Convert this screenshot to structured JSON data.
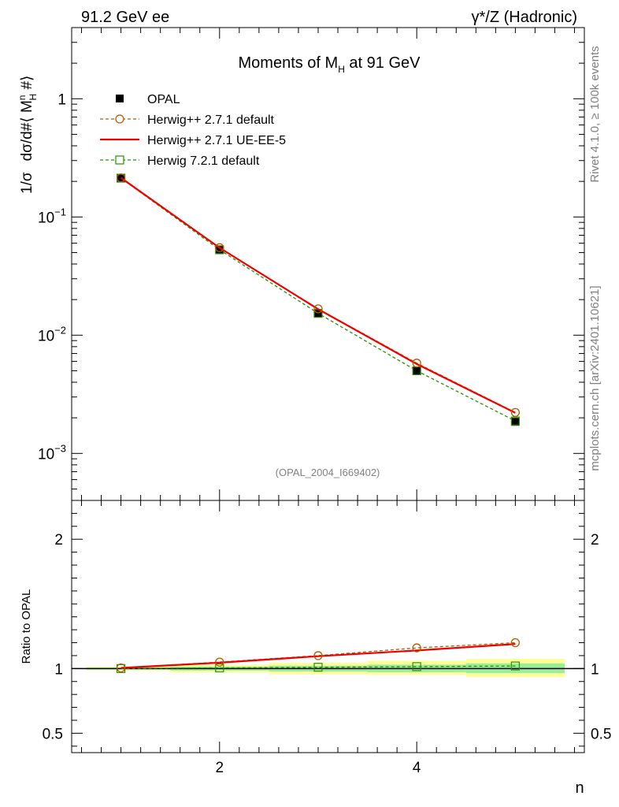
{
  "header": {
    "left": "91.2 GeV ee",
    "right": "γ*/Z (Hadronic)"
  },
  "side_labels": {
    "upper": "Rivet 4.1.0, ≥ 100k events",
    "lower": "mcplots.cern.ch [arXiv:2401.10621]"
  },
  "chart_data": [
    {
      "type": "line",
      "panel": "main",
      "title": "Moments of M_H at 91 GeV",
      "title_main": "Moments of M",
      "title_sub": "H",
      "title_tail": " at 91 GeV",
      "ylabel_a": "1/σ",
      "ylabel_b": "dσ/d#⟨ M",
      "ylabel_sup": "n",
      "ylabel_sub": "H",
      "ylabel_tail": " #⟩",
      "yscale": "log",
      "ylim": [
        0.0004,
        4
      ],
      "yticklabels": [
        {
          "value": 1,
          "base": "1",
          "exp": ""
        },
        {
          "value": 0.1,
          "base": "10",
          "exp": "−1"
        },
        {
          "value": 0.01,
          "base": "10",
          "exp": "−2"
        },
        {
          "value": 0.001,
          "base": "10",
          "exp": "−3"
        }
      ],
      "watermark": "(OPAL_2004_I669402)",
      "x": [
        1,
        2,
        3,
        4,
        5
      ],
      "series": [
        {
          "name": "OPAL",
          "style": "data",
          "color": "#000000",
          "values": [
            0.213,
            0.0525,
            0.0152,
            0.005,
            0.00185
          ]
        },
        {
          "name": "Herwig++ 2.7.1 default",
          "style": "dashed-circle",
          "color": "#b05a00",
          "values": [
            0.214,
            0.055,
            0.0167,
            0.0058,
            0.00222
          ]
        },
        {
          "name": "Herwig++ 2.7.1 UE-EE-5",
          "style": "solid",
          "color": "#ee0000",
          "values": [
            0.214,
            0.0549,
            0.0166,
            0.0057,
            0.0022
          ]
        },
        {
          "name": "Herwig 7.2.1 default",
          "style": "dashed-square",
          "color": "#279000",
          "values": [
            0.213,
            0.0528,
            0.0153,
            0.005,
            0.00188
          ]
        }
      ]
    },
    {
      "type": "line",
      "panel": "ratio",
      "ylabel": "Ratio to OPAL",
      "xlabel": "n",
      "xlim": [
        0.5,
        5.7
      ],
      "xticks": [
        2,
        4
      ],
      "ylim": [
        0.35,
        2.3
      ],
      "yticks": [
        0.5,
        1,
        2
      ],
      "yticklabels": [
        "0.5",
        "1",
        "2"
      ],
      "x": [
        1,
        2,
        3,
        4,
        5
      ],
      "bands": {
        "yellow": [
          [
            0.985,
            1.015
          ],
          [
            0.97,
            1.03
          ],
          [
            0.955,
            1.045
          ],
          [
            0.95,
            1.06
          ],
          [
            0.935,
            1.075
          ]
        ],
        "green": [
          [
            0.992,
            1.008
          ],
          [
            0.985,
            1.015
          ],
          [
            0.978,
            1.022
          ],
          [
            0.972,
            1.03
          ],
          [
            0.965,
            1.04
          ]
        ]
      },
      "series": [
        {
          "name": "Herwig++ 2.7.1 default",
          "values": [
            1.005,
            1.05,
            1.1,
            1.16,
            1.2
          ]
        },
        {
          "name": "Herwig++ 2.7.1 UE-EE-5",
          "values": [
            1.005,
            1.045,
            1.095,
            1.14,
            1.19
          ]
        },
        {
          "name": "Herwig 7.2.1 default",
          "values": [
            1.0,
            1.005,
            1.01,
            1.015,
            1.02
          ]
        }
      ]
    }
  ]
}
